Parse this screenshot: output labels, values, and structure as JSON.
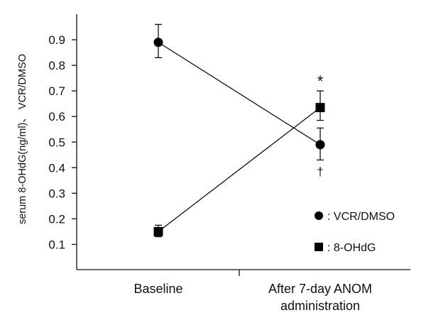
{
  "chart_data": {
    "type": "line",
    "ylabel": "serum 8-OHdG(ng/ml)、 VCR/DMSO",
    "ylim": [
      0.0,
      1.0
    ],
    "yticks": [
      0.1,
      0.2,
      0.3,
      0.4,
      0.5,
      0.6,
      0.7,
      0.8,
      0.9
    ],
    "ytick_labels": [
      "0.1",
      "0.2",
      "0.3",
      "0.4",
      "0.5",
      "0.6",
      "0.7",
      "0.8",
      "0.9"
    ],
    "categories": [
      [
        "Baseline"
      ],
      [
        "After 7-day ANOM",
        "administration"
      ]
    ],
    "series": [
      {
        "legend_label": "VCR/DMSO",
        "marker": "circle",
        "values": [
          0.89,
          0.49
        ],
        "err_low": [
          0.06,
          0.06
        ],
        "err_high": [
          0.07,
          0.065
        ]
      },
      {
        "legend_label": "8-OHdG",
        "marker": "square",
        "values": [
          0.15,
          0.635
        ],
        "err_low": [
          0.02,
          0.05
        ],
        "err_high": [
          0.025,
          0.065
        ]
      }
    ],
    "legend": {
      "position": "bottom-right",
      "separator": ":",
      "items": [
        "VCR/DMSO",
        "8-OHdG"
      ]
    },
    "annotations": [
      {
        "text": "*",
        "series": 1,
        "category": 1,
        "placement": "above"
      },
      {
        "text": "†",
        "series": 0,
        "category": 1,
        "placement": "below"
      }
    ],
    "grid": false,
    "colors": {
      "line": "#111111",
      "marker": "#000000",
      "axis": "#111111"
    }
  }
}
